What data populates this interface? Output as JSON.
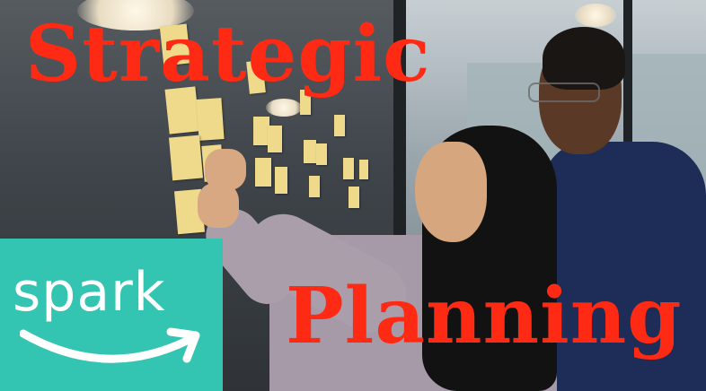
{
  "headline": {
    "line1": "Strategic",
    "line2": "Planning",
    "color": "#ff2a14"
  },
  "logo": {
    "text": "spark",
    "background": "#34c4b2",
    "foreground": "#ffffff",
    "mark": "smile-arrow"
  },
  "photo": {
    "subject": "two people arranging sticky notes on a glass wall",
    "sticky_note_color": "#efd98a"
  }
}
